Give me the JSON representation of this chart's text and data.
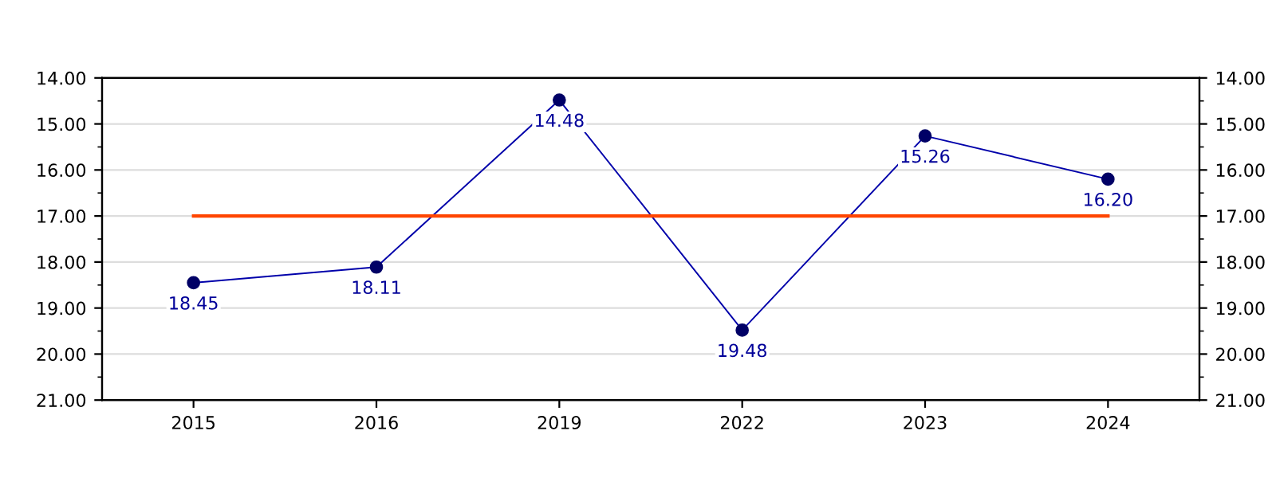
{
  "chart_data": {
    "type": "line",
    "categories": [
      "2015",
      "2016",
      "2019",
      "2022",
      "2023",
      "2024"
    ],
    "series": [
      {
        "color": "#0000aa",
        "values": [
          18.45,
          18.11,
          14.48,
          19.48,
          15.26,
          16.2
        ],
        "value_labels": [
          "18.45",
          "18.11",
          "14.48",
          "19.48",
          "15.26",
          "16.20"
        ]
      }
    ],
    "marker": "circle",
    "line_style": "solid",
    "ylim": [
      21,
      14
    ],
    "yticks": [
      {
        "value": 14,
        "label": "14.00"
      },
      {
        "value": 15,
        "label": "15.00"
      },
      {
        "value": 16,
        "label": "16.00"
      },
      {
        "value": 17,
        "label": "17.00"
      },
      {
        "value": 18,
        "label": "18.00"
      },
      {
        "value": 19,
        "label": "19.00"
      },
      {
        "value": 20,
        "label": "20.00"
      },
      {
        "value": 21,
        "label": "21.00"
      }
    ],
    "y2lim": [
      21,
      14
    ],
    "y2ticks": [
      {
        "value": 14,
        "label": "14.00"
      },
      {
        "value": 15,
        "label": "15.00"
      },
      {
        "value": 16,
        "label": "16.00"
      },
      {
        "value": 17,
        "label": "17.00"
      },
      {
        "value": 18,
        "label": "18.00"
      },
      {
        "value": 19,
        "label": "19.00"
      },
      {
        "value": 20,
        "label": "20.00"
      },
      {
        "value": 21,
        "label": "21.00"
      }
    ],
    "ref_lines": [
      {
        "axis": "y",
        "value": 17.0,
        "color": "#ff4500"
      }
    ],
    "grid": "y"
  }
}
